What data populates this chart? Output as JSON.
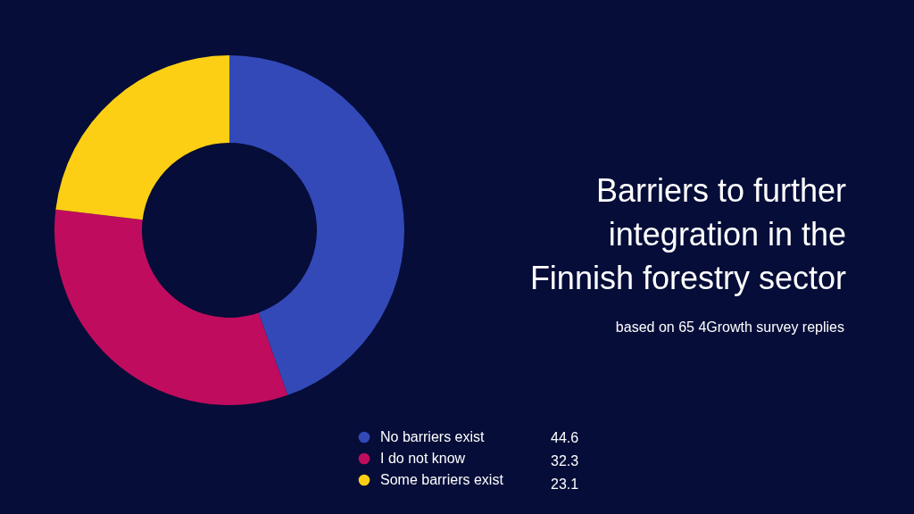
{
  "chart_data": {
    "type": "donut",
    "title": "Barriers to further integration in the Finnish forestry sector",
    "subtitle": "based on 65 4Growth survey replies",
    "categories": [
      "No barriers exist",
      "I do not know",
      "Some barriers exist"
    ],
    "values": [
      44.6,
      32.3,
      23.1
    ],
    "colors": [
      "#3349b8",
      "#c00c5f",
      "#fccf14"
    ],
    "legend": "bottom",
    "data_labels": true
  }
}
